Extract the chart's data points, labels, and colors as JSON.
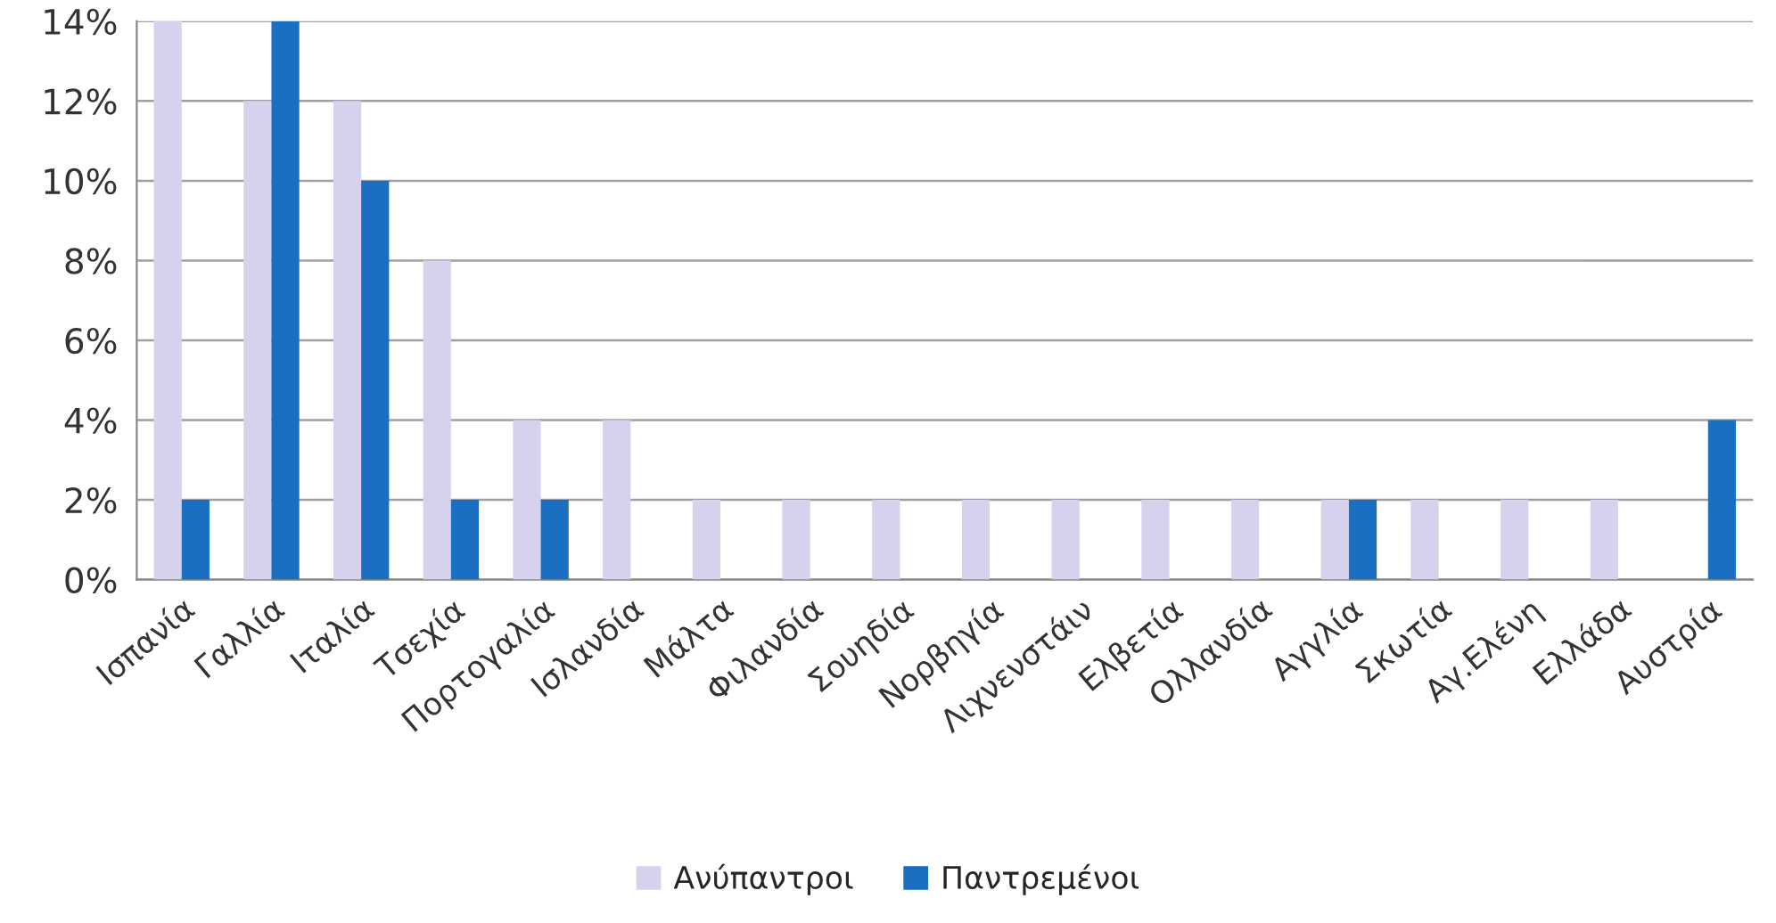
{
  "chart_data": {
    "type": "bar",
    "categories": [
      "Ισπανία",
      "Γαλλία",
      "Ιταλία",
      "Τσεχία",
      "Πορτογαλία",
      "Ισλανδία",
      "Μάλτα",
      "Φιλανδία",
      "Σουηδία",
      "Νορβηγία",
      "Λιχνενστάιν",
      "Ελβετία",
      "Ολλανδία",
      "Αγγλία",
      "Σκωτία",
      "Αγ.Ελένη",
      "Ελλάδα",
      "Αυστρία"
    ],
    "series": [
      {
        "name": "Ανύπαντροι",
        "color": "#d6d2ee",
        "values": [
          14,
          12,
          12,
          8,
          4,
          4,
          2,
          2,
          2,
          2,
          2,
          2,
          2,
          2,
          2,
          2,
          2,
          null
        ]
      },
      {
        "name": "Παντρεμένοι",
        "color": "#1b6fc2",
        "values": [
          2,
          14,
          10,
          2,
          2,
          null,
          null,
          null,
          null,
          null,
          null,
          null,
          null,
          2,
          null,
          null,
          null,
          4
        ]
      }
    ],
    "ylim": [
      0,
      14
    ],
    "yticks": [
      {
        "value": 0,
        "label": "0%"
      },
      {
        "value": 2,
        "label": "2%"
      },
      {
        "value": 4,
        "label": "4%"
      },
      {
        "value": 6,
        "label": "6%"
      },
      {
        "value": 8,
        "label": "8%"
      },
      {
        "value": 10,
        "label": "10%"
      },
      {
        "value": 12,
        "label": "12%"
      },
      {
        "value": 14,
        "label": "14%"
      }
    ],
    "grid": "y",
    "legend": "bottom"
  }
}
